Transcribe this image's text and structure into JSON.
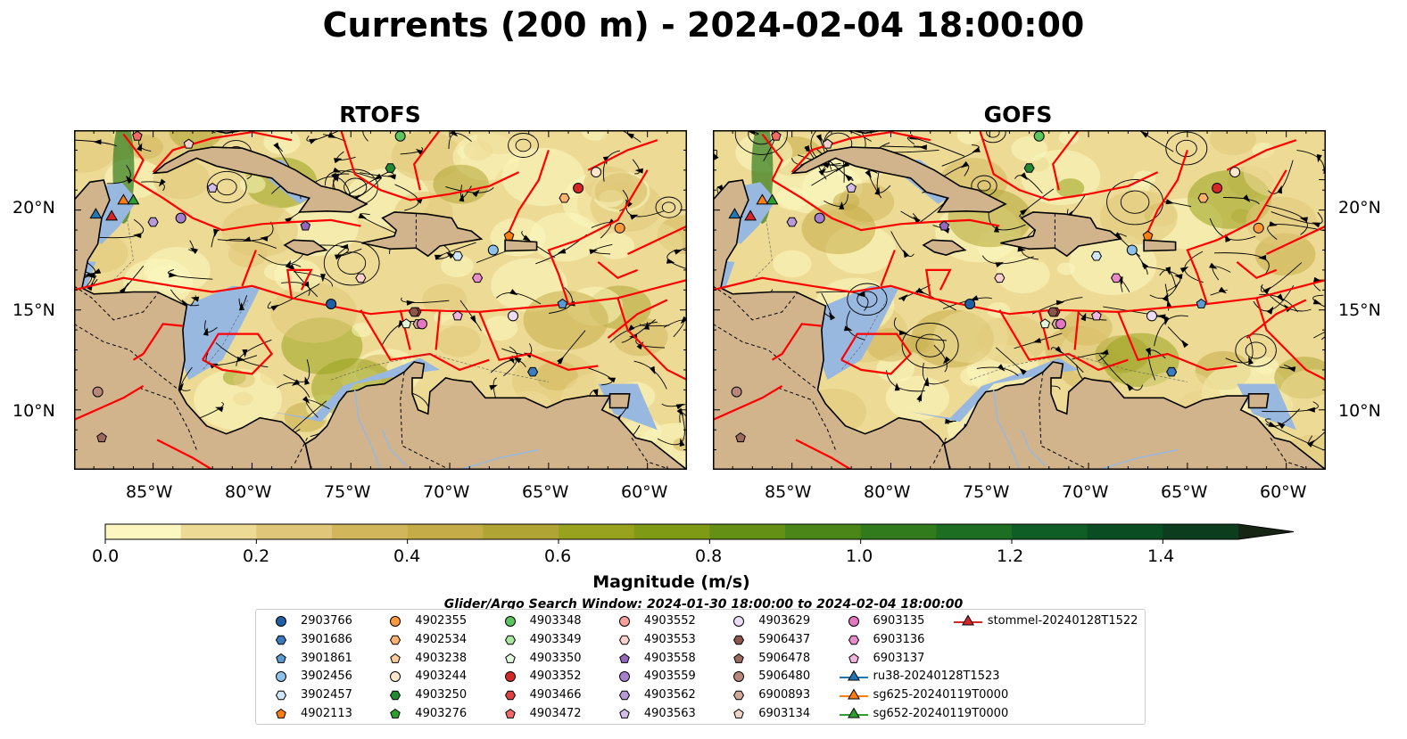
{
  "title": "Currents (200 m) - 2024-02-04 18:00:00",
  "panels": [
    {
      "name": "rtofs-map",
      "title": "RTOFS"
    },
    {
      "name": "gofs-map",
      "title": "GOFS"
    }
  ],
  "map": {
    "lon_range": [
      -89,
      -58
    ],
    "lat_range": [
      7,
      24
    ],
    "x_ticks": [
      "85°W",
      "80°W",
      "75°W",
      "70°W",
      "65°W",
      "60°W"
    ],
    "y_ticks": [
      "20°N",
      "15°N",
      "10°N"
    ],
    "colors": {
      "land": "#d2b48c",
      "shallow_water": "#98b8e0",
      "eez": "#ff0000",
      "stream": "#000000"
    }
  },
  "colorbar": {
    "label": "Magnitude (m/s)",
    "ticks": [
      "0.0",
      "0.2",
      "0.4",
      "0.6",
      "0.8",
      "1.0",
      "1.2",
      "1.4"
    ],
    "colors": [
      "#fcf7c0",
      "#eddb95",
      "#e0c678",
      "#d2b65c",
      "#c4ad48",
      "#b0a534",
      "#99a21f",
      "#7f9a14",
      "#649115",
      "#4a8618",
      "#317b1c",
      "#1d6d22",
      "#0f5e26",
      "#0b4d22",
      "#0c3d1d",
      "#123018",
      "#172614"
    ]
  },
  "search_window": "Glider/Argo Search Window: 2024-01-30 18:00:00 to 2024-02-04 18:00:00",
  "legend": [
    {
      "label": "2903766",
      "marker": "circle",
      "color": "#1f5fa6"
    },
    {
      "label": "3901686",
      "marker": "hexagon",
      "color": "#3a7abf"
    },
    {
      "label": "3901861",
      "marker": "pentagon",
      "color": "#5b9bd5"
    },
    {
      "label": "3902456",
      "marker": "circle",
      "color": "#8ec1ea"
    },
    {
      "label": "3902457",
      "marker": "hexagon",
      "color": "#cfe6f7"
    },
    {
      "label": "4902113",
      "marker": "pentagon",
      "color": "#ff7f0e"
    },
    {
      "label": "4902355",
      "marker": "circle",
      "color": "#ff9a3c"
    },
    {
      "label": "4902534",
      "marker": "hexagon",
      "color": "#ffb26b"
    },
    {
      "label": "4903238",
      "marker": "pentagon",
      "color": "#ffcc9a"
    },
    {
      "label": "4903244",
      "marker": "circle",
      "color": "#ffe7cc"
    },
    {
      "label": "4903250",
      "marker": "hexagon",
      "color": "#1f8a2e"
    },
    {
      "label": "4903276",
      "marker": "pentagon",
      "color": "#2ca02c"
    },
    {
      "label": "4903348",
      "marker": "circle",
      "color": "#5cc45c"
    },
    {
      "label": "4903349",
      "marker": "hexagon",
      "color": "#a8e6a0"
    },
    {
      "label": "4903350",
      "marker": "pentagon",
      "color": "#e2f7dc"
    },
    {
      "label": "4903352",
      "marker": "circle",
      "color": "#d62728"
    },
    {
      "label": "4903466",
      "marker": "hexagon",
      "color": "#e0433f"
    },
    {
      "label": "4903472",
      "marker": "pentagon",
      "color": "#f06a66"
    },
    {
      "label": "4903552",
      "marker": "circle",
      "color": "#f7a09c"
    },
    {
      "label": "4903553",
      "marker": "hexagon",
      "color": "#fbd0cd"
    },
    {
      "label": "4903558",
      "marker": "pentagon",
      "color": "#9467bd"
    },
    {
      "label": "4903559",
      "marker": "circle",
      "color": "#a77fcc"
    },
    {
      "label": "4903562",
      "marker": "hexagon",
      "color": "#b99ad8"
    },
    {
      "label": "4903563",
      "marker": "pentagon",
      "color": "#d3bdea"
    },
    {
      "label": "4903629",
      "marker": "circle",
      "color": "#ecdcf7"
    },
    {
      "label": "5906437",
      "marker": "hexagon",
      "color": "#8c564b"
    },
    {
      "label": "5906478",
      "marker": "pentagon",
      "color": "#9c6a5c"
    },
    {
      "label": "5906480",
      "marker": "circle",
      "color": "#b8867a"
    },
    {
      "label": "6900893",
      "marker": "hexagon",
      "color": "#d3a89c"
    },
    {
      "label": "6903134",
      "marker": "pentagon",
      "color": "#f0d2c8"
    },
    {
      "label": "6903135",
      "marker": "circle",
      "color": "#e377c2"
    },
    {
      "label": "6903136",
      "marker": "hexagon",
      "color": "#e98ccb"
    },
    {
      "label": "6903137",
      "marker": "pentagon",
      "color": "#f2b5dd"
    },
    {
      "label": "ru38-20240128T1523",
      "marker": "triangle-line",
      "color": "#1f77b4"
    },
    {
      "label": "sg625-20240119T0000",
      "marker": "triangle-line",
      "color": "#ff7f0e"
    },
    {
      "label": "sg652-20240119T0000",
      "marker": "triangle-line",
      "color": "#2ca02c"
    },
    {
      "label": "stommel-20240128T1522",
      "marker": "triangle-line",
      "color": "#d62728"
    }
  ],
  "floats_positions_lonlat": [
    {
      "id": "2903766",
      "lon": -76.0,
      "lat": 15.3
    },
    {
      "id": "3901861",
      "lon": -64.3,
      "lat": 15.3
    },
    {
      "id": "3902456",
      "lon": -67.8,
      "lat": 18.0
    },
    {
      "id": "3902457",
      "lon": -69.6,
      "lat": 17.7
    },
    {
      "id": "4902113",
      "lon": -67.0,
      "lat": 18.7
    },
    {
      "id": "4902355",
      "lon": -61.4,
      "lat": 19.1
    },
    {
      "id": "4902534",
      "lon": -64.2,
      "lat": 20.6
    },
    {
      "id": "4903244",
      "lon": -62.6,
      "lat": 21.9
    },
    {
      "id": "4903250",
      "lon": -73.0,
      "lat": 22.1
    },
    {
      "id": "4903348",
      "lon": -72.5,
      "lat": 23.7
    },
    {
      "id": "4903350",
      "lon": -72.2,
      "lat": 14.3
    },
    {
      "id": "4903352",
      "lon": -63.5,
      "lat": 21.1
    },
    {
      "id": "4903466",
      "lon": -71.7,
      "lat": 14.9
    },
    {
      "id": "4903472",
      "lon": -85.8,
      "lat": 23.7
    },
    {
      "id": "4903553",
      "lon": -74.5,
      "lat": 16.6
    },
    {
      "id": "4903558",
      "lon": -77.3,
      "lat": 19.2
    },
    {
      "id": "4903559",
      "lon": -83.6,
      "lat": 19.6
    },
    {
      "id": "4903562",
      "lon": -85.0,
      "lat": 19.4
    },
    {
      "id": "4903563",
      "lon": -82.0,
      "lat": 21.1
    },
    {
      "id": "4903629",
      "lon": -66.8,
      "lat": 14.7
    },
    {
      "id": "5906437",
      "lon": -71.8,
      "lat": 14.9
    },
    {
      "id": "5906478",
      "lon": -87.6,
      "lat": 8.6
    },
    {
      "id": "5906480",
      "lon": -87.8,
      "lat": 10.9
    },
    {
      "id": "6900893",
      "lon": -71.6,
      "lat": 14.3
    },
    {
      "id": "6903134",
      "lon": -83.2,
      "lat": 23.3
    },
    {
      "id": "6903135",
      "lon": -71.4,
      "lat": 14.3
    },
    {
      "id": "6903136",
      "lon": -68.6,
      "lat": 16.6
    },
    {
      "id": "6903137",
      "lon": -69.6,
      "lat": 14.7
    },
    {
      "id": "3901686",
      "lon": -65.8,
      "lat": 11.9
    }
  ],
  "gliders_positions_lonlat": [
    {
      "id": "ru38-20240128T1523",
      "lon": -87.9,
      "lat": 19.8
    },
    {
      "id": "sg625-20240119T0000",
      "lon": -86.5,
      "lat": 20.5
    },
    {
      "id": "sg652-20240119T0000",
      "lon": -86.0,
      "lat": 20.5
    },
    {
      "id": "stommel-20240128T1522",
      "lon": -87.1,
      "lat": 19.7
    }
  ]
}
